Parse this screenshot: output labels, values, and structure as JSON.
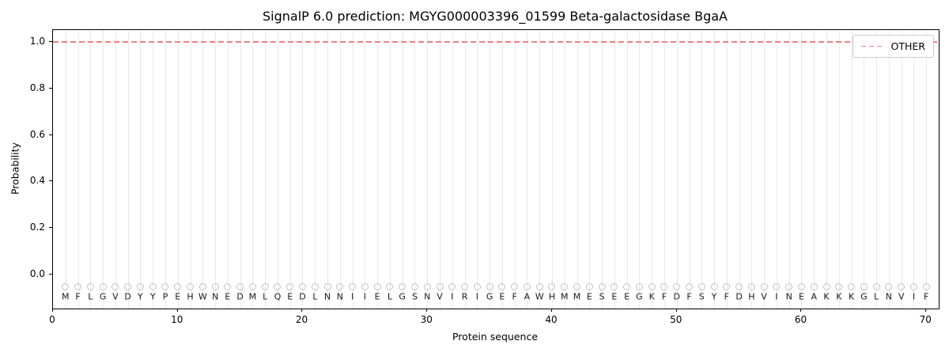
{
  "figure": {
    "title": "SignalP 6.0 prediction: MGYG000003396_01599 Beta-galactosidase BgaA",
    "xlabel": "Protein sequence",
    "ylabel": "Probability"
  },
  "legend": {
    "items": [
      {
        "label": "OTHER",
        "style": "dashed",
        "color": "#f08080"
      }
    ],
    "position": "upper right"
  },
  "colors": {
    "other_line": "#f08080",
    "grid": "#e9e9e9",
    "marker_edge": "#c2c2c2",
    "spine": "#000000"
  },
  "chart_data": {
    "type": "line",
    "title": "SignalP 6.0 prediction: MGYG000003396_01599 Beta-galactosidase BgaA",
    "xlabel": "Protein sequence",
    "ylabel": "Probability",
    "xlim": [
      0,
      71
    ],
    "ylim": [
      -0.145,
      1.05
    ],
    "xticks": [
      0,
      10,
      20,
      30,
      40,
      50,
      60,
      70
    ],
    "yticks": [
      0.0,
      0.2,
      0.4,
      0.6,
      0.8,
      1.0
    ],
    "ytick_labels": [
      "0.0",
      "0.2",
      "0.4",
      "0.6",
      "0.8",
      "1.0"
    ],
    "grid": "vertical gridline at each residue position 1-70, light gray",
    "legend_position": "upper right",
    "series": [
      {
        "name": "OTHER",
        "type": "horizontal-dashed-line",
        "y": 1.0,
        "x_start": 0,
        "x_end": 71,
        "color": "#f08080"
      }
    ],
    "markers": {
      "shape": "open-circle",
      "y": -0.05,
      "positions": "1 through 70"
    },
    "marker_y": -0.05,
    "letter_y": -0.095,
    "sequence": "MFLGVDYYPEHWNEDMLQEDLNNIIELGSNVIRIGEFAWHMMESEEGKFDFSYFDHVINEAKKKGLNVIF"
  }
}
